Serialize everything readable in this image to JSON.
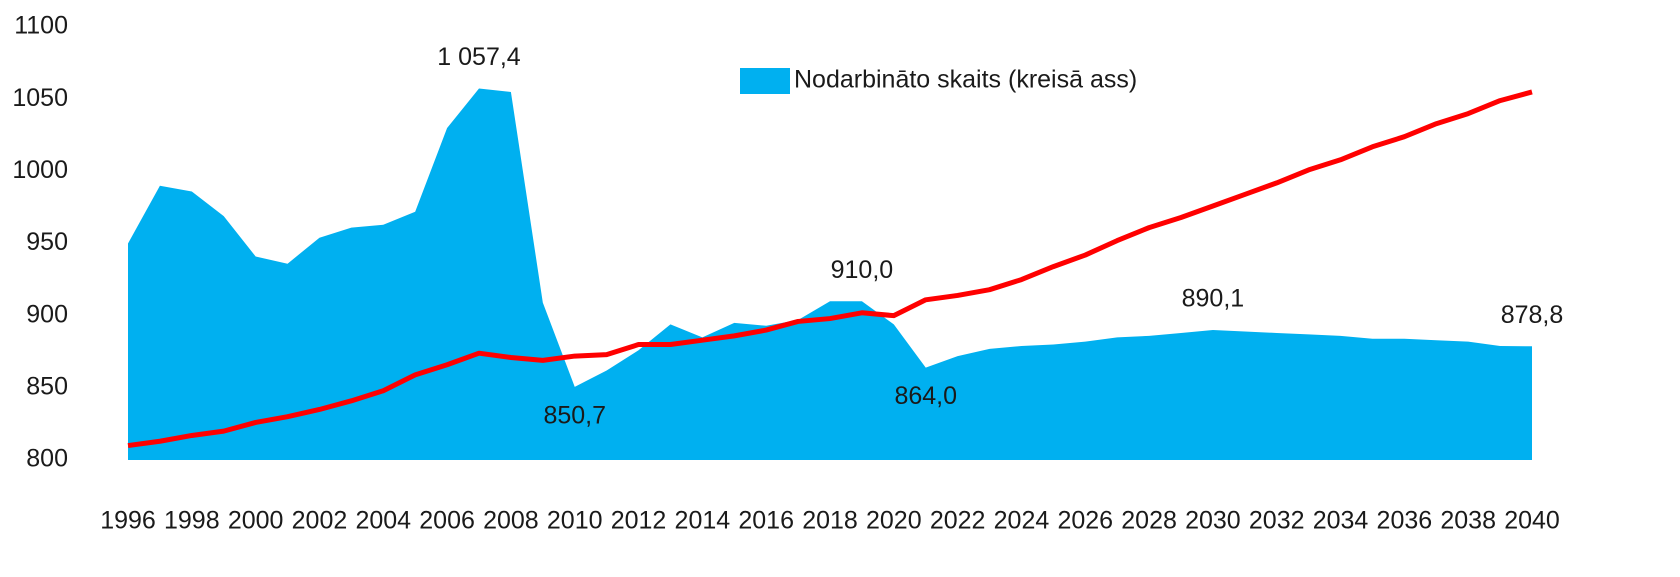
{
  "chart_data": {
    "type": "area",
    "x": [
      1996,
      1997,
      1998,
      1999,
      2000,
      2001,
      2002,
      2003,
      2004,
      2005,
      2006,
      2007,
      2008,
      2009,
      2010,
      2011,
      2012,
      2013,
      2014,
      2015,
      2016,
      2017,
      2018,
      2019,
      2020,
      2021,
      2022,
      2023,
      2024,
      2025,
      2026,
      2027,
      2028,
      2029,
      2030,
      2031,
      2032,
      2033,
      2034,
      2035,
      2036,
      2037,
      2038,
      2039,
      2040
    ],
    "xlim": [
      1996,
      2040
    ],
    "xticks": [
      1996,
      1998,
      2000,
      2002,
      2004,
      2006,
      2008,
      2010,
      2012,
      2014,
      2016,
      2018,
      2020,
      2022,
      2024,
      2026,
      2028,
      2030,
      2032,
      2034,
      2036,
      2038,
      2040
    ],
    "ylim": [
      800,
      1100
    ],
    "yticks": [
      800,
      850,
      900,
      950,
      1000,
      1050,
      1100
    ],
    "grid": false,
    "legend": "top",
    "series": [
      {
        "name": "Nodarbināto skaits (kreisā ass)",
        "type": "area",
        "color": "#00b0f0",
        "values": [
          950,
          990,
          986,
          969,
          941,
          936,
          954,
          961,
          963,
          972,
          1030,
          1057.4,
          1055,
          909,
          850.7,
          862,
          876,
          894,
          885,
          895,
          893,
          897,
          910,
          910,
          894,
          864.0,
          872,
          877,
          879,
          880,
          882,
          885,
          886,
          888,
          890.1,
          889,
          888,
          887,
          886,
          884,
          884,
          883,
          882,
          879,
          878.8
        ],
        "value_labels": [
          null,
          null,
          null,
          null,
          null,
          null,
          null,
          null,
          null,
          null,
          null,
          "1 057,4",
          null,
          null,
          "850,7",
          null,
          null,
          null,
          null,
          null,
          null,
          null,
          null,
          "910,0",
          null,
          "864,0",
          null,
          null,
          null,
          null,
          null,
          null,
          null,
          null,
          "890,1",
          null,
          null,
          null,
          null,
          null,
          null,
          null,
          null,
          null,
          "878,8"
        ]
      },
      {
        "type": "line",
        "color": "#ff0000",
        "values": [
          810,
          813,
          817,
          820,
          826,
          830,
          835,
          841,
          848,
          859,
          866,
          874,
          871,
          869,
          872,
          873,
          880,
          880,
          883,
          886,
          890,
          896,
          898,
          902,
          900,
          911,
          914,
          918,
          925,
          934,
          942,
          952,
          961,
          968,
          976,
          984,
          992,
          1001,
          1008,
          1017,
          1024,
          1033,
          1040,
          1049,
          1055
        ]
      }
    ]
  }
}
